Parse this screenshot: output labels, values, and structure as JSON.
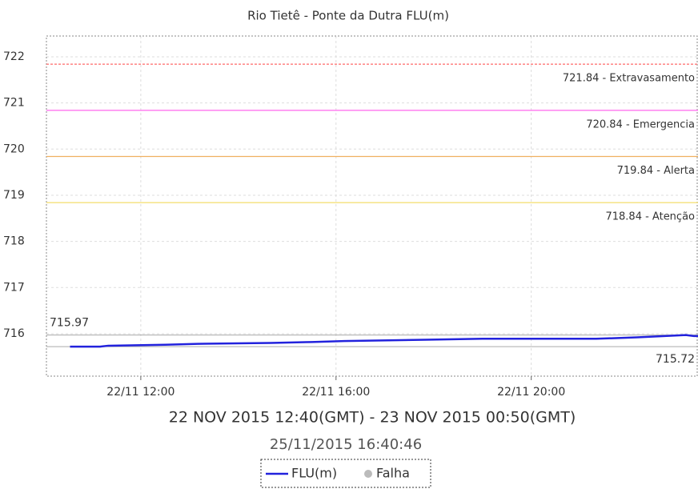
{
  "chart_data": {
    "type": "line",
    "title": "Rio Tietê - Ponte da Dutra FLU(m)",
    "subtitle": "22 NOV 2015 12:40(GMT) - 23 NOV 2015 00:50(GMT)",
    "timestamp": "25/11/2015 16:40:46",
    "x": [
      "22/11 10:33",
      "22/11 11:10",
      "22/11 11:20",
      "22/11 12:30",
      "22/11 13:10",
      "22/11 14:40",
      "22/11 15:30",
      "22/11 16:10",
      "22/11 17:50",
      "22/11 19:00",
      "22/11 21:20",
      "22/11 22:10",
      "22/11 23:10",
      "22/11 23:20",
      "22/11 23:50"
    ],
    "series": [
      {
        "name": "FLU(m)",
        "color": "#2222dd",
        "values": [
          715.72,
          715.72,
          715.74,
          715.76,
          715.78,
          715.8,
          715.82,
          715.84,
          715.87,
          715.89,
          715.89,
          715.92,
          715.97,
          715.95,
          715.95
        ]
      }
    ],
    "failure_legend": "Falha",
    "xlim": [
      "22/11 10:04",
      "22/11 23:25"
    ],
    "xticks": [
      "22/11 12:00",
      "22/11 16:00",
      "22/11 20:00"
    ],
    "ylim": [
      715.08,
      722.45
    ],
    "yticks": [
      716,
      717,
      718,
      719,
      720,
      721,
      722
    ],
    "grid": true,
    "thresholds": [
      {
        "value": 721.84,
        "label": "721.84 - Extravasamento",
        "color": "#ff7777",
        "dashed": true
      },
      {
        "value": 720.84,
        "label": "720.84 - Emergencia",
        "color": "#ff66ee",
        "dashed": false
      },
      {
        "value": 719.84,
        "label": "719.84 - Alerta",
        "color": "#f0b060",
        "dashed": false
      },
      {
        "value": 718.84,
        "label": "718.84 - Atenção",
        "color": "#f5e07a",
        "dashed": false
      }
    ],
    "extremes": [
      {
        "value": 715.97,
        "side": "left"
      },
      {
        "value": 715.72,
        "side": "right"
      }
    ]
  }
}
